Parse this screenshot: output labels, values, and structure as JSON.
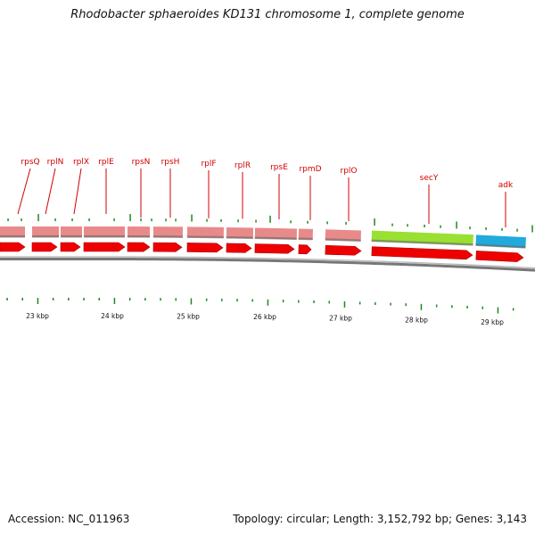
{
  "title": "Rhodobacter sphaeroides KD131 chromosome 1, complete genome",
  "accession_text": "Accession: NC_011963",
  "topology_text": "Topology: circular; Length: 3,152,792 bp; Genes: 3,143",
  "colors": {
    "gene_label": "#d40000",
    "cds_arrow": "#ee0000",
    "pink_feature": "#e88a8a",
    "green_feature": "#99e033",
    "blue_feature": "#22aadd",
    "backbone": "#777777",
    "tick": "#228822"
  },
  "gene_labels": [
    "rpsQ",
    "rplN",
    "rplX",
    "rplE",
    "rpsN",
    "rpsH",
    "rplF",
    "rplR",
    "rpsE",
    "rpmD",
    "rplO",
    "secY",
    "adk"
  ],
  "kbp_labels": [
    "23 kbp",
    "24 kbp",
    "25 kbp",
    "26 kbp",
    "27 kbp",
    "28 kbp",
    "29 kbp"
  ]
}
